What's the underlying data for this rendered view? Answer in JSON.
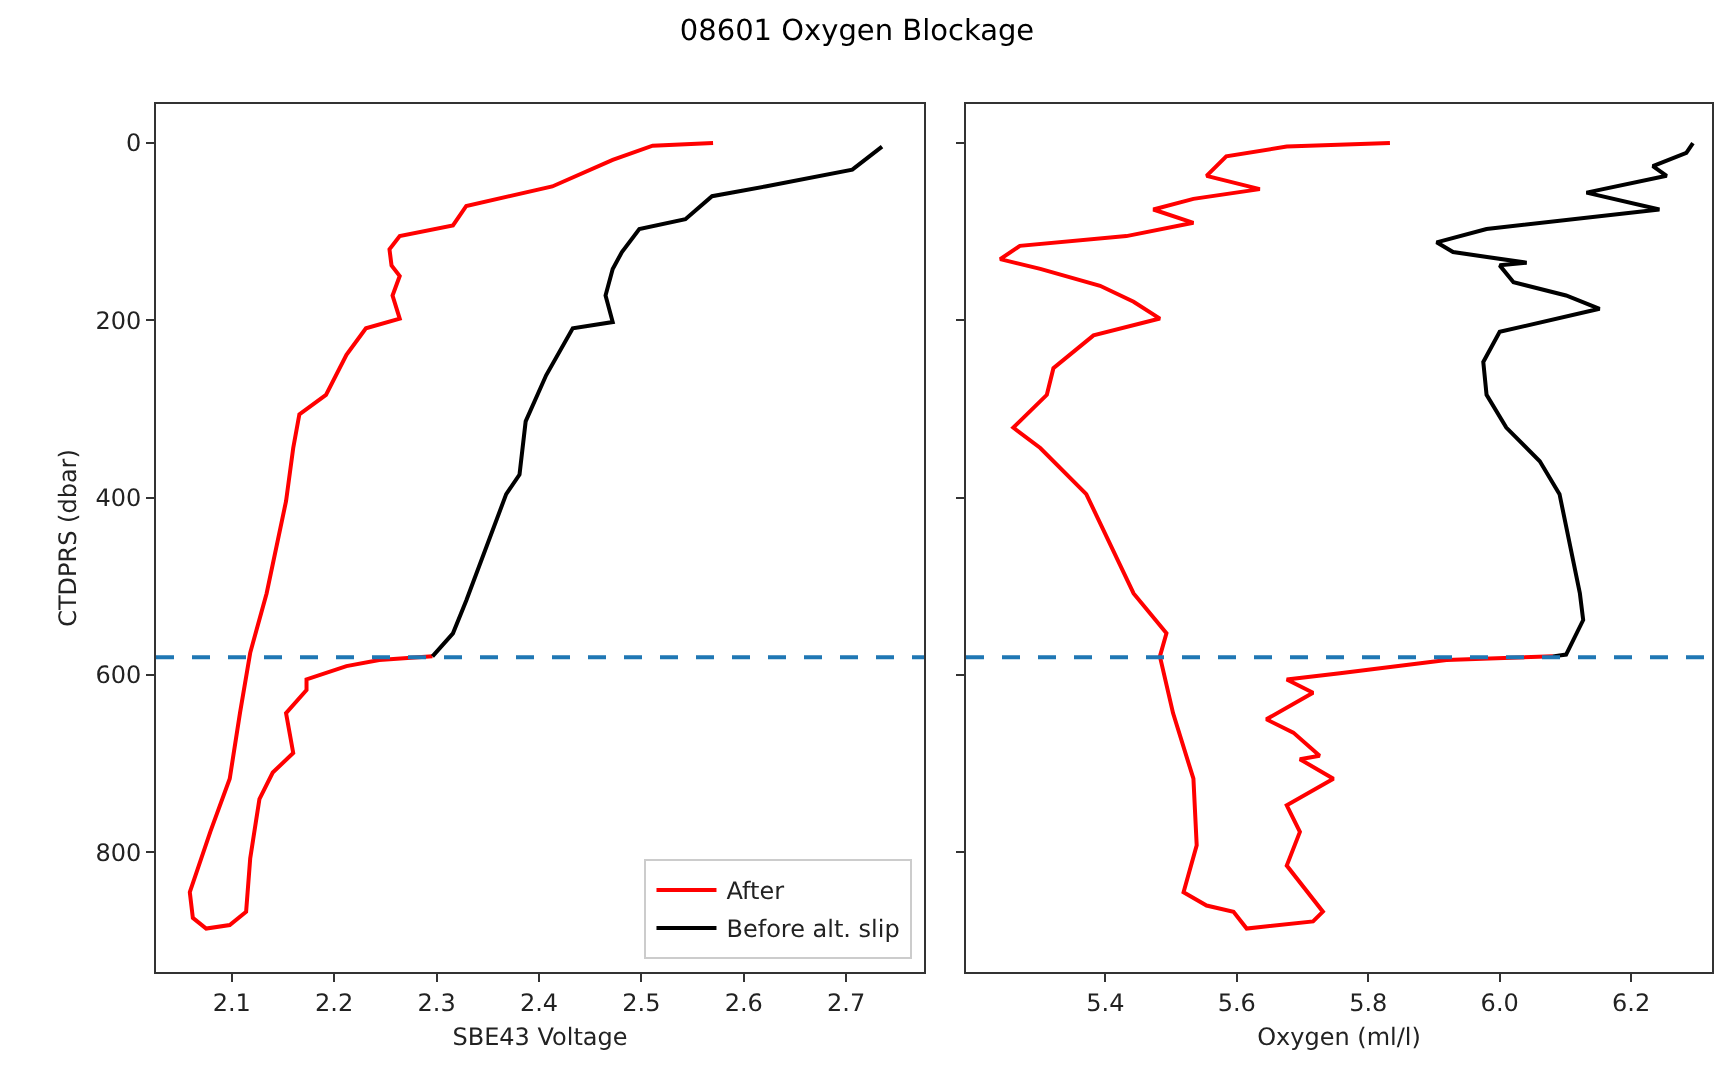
{
  "chart_data": [
    {
      "type": "line",
      "title": "08601 Oxygen Blockage",
      "xlabel": "SBE43 Voltage",
      "ylabel": "CTDPRS (dbar)",
      "xlim": [
        2.026,
        2.776
      ],
      "xticks": [
        2.1,
        2.2,
        2.3,
        2.4,
        2.5,
        2.6,
        2.7
      ],
      "ylim": [
        935,
        -44
      ],
      "yticks": [
        0,
        200,
        400,
        600,
        800
      ],
      "legend": "bottom right",
      "grid": false,
      "ref_lines": [
        {
          "axis": "y",
          "value": 580,
          "color": "#1f77b4",
          "line_style": "dashed"
        }
      ],
      "series": [
        {
          "name": "After",
          "color": "#ff0000",
          "x": [
            2.57,
            2.511,
            2.472,
            2.413,
            2.329,
            2.316,
            2.264,
            2.254,
            2.256,
            2.264,
            2.257,
            2.264,
            2.231,
            2.212,
            2.192,
            2.166,
            2.16,
            2.153,
            2.134,
            2.118,
            2.108,
            2.098,
            2.079,
            2.059,
            2.062,
            2.075,
            2.098,
            2.114,
            2.118,
            2.127,
            2.14,
            2.16,
            2.153,
            2.173,
            2.173,
            2.212,
            2.244,
            2.296
          ],
          "values": [
            0,
            3,
            19,
            49,
            71,
            93,
            105,
            120,
            138,
            150,
            172,
            198,
            209,
            239,
            284,
            306,
            344,
            404,
            508,
            575,
            643,
            717,
            777,
            845,
            874,
            886,
            882,
            867,
            807,
            740,
            710,
            688,
            643,
            617,
            605,
            590,
            583,
            579
          ]
        },
        {
          "name": "Before alt. slip",
          "color": "#000000",
          "x": [
            2.296,
            2.316,
            2.329,
            2.368,
            2.381,
            2.387,
            2.407,
            2.433,
            2.472,
            2.465,
            2.472,
            2.481,
            2.498,
            2.543,
            2.569,
            2.621,
            2.706,
            2.735
          ],
          "values": [
            579,
            553,
            516,
            396,
            374,
            314,
            262,
            209,
            202,
            172,
            142,
            123,
            97,
            86,
            60,
            49,
            30,
            4
          ]
        }
      ]
    },
    {
      "type": "line",
      "xlabel": "Oxygen (ml/l)",
      "xlim": [
        5.188,
        6.323
      ],
      "xticks": [
        5.4,
        5.6,
        5.8,
        {
          "value": 6,
          "label": "6.0"
        },
        6.2
      ],
      "ylim": [
        935,
        -44
      ],
      "yticks": [
        0,
        200,
        400,
        600,
        800
      ],
      "tick_labels": "x",
      "legend": false,
      "grid": false,
      "ref_lines": [
        {
          "axis": "y",
          "value": 580,
          "color": "#1f77b4",
          "line_style": "dashed"
        }
      ],
      "series": [
        {
          "color": "#ff0000",
          "x": [
            5.833,
            5.676,
            5.584,
            5.554,
            5.635,
            5.534,
            5.473,
            5.534,
            5.432,
            5.27,
            5.24,
            5.301,
            5.392,
            5.443,
            5.483,
            5.382,
            5.321,
            5.311,
            5.26,
            5.301,
            5.371,
            5.443,
            5.493,
            5.483,
            5.503,
            5.534,
            5.539,
            5.519,
            5.554,
            5.595,
            5.615,
            5.716,
            5.731,
            5.676,
            5.696,
            5.676,
            5.747,
            5.696,
            5.726,
            5.686,
            5.645,
            5.716,
            5.676,
            5.757,
            5.919,
            6.081
          ],
          "values": [
            0,
            4,
            15,
            37,
            52,
            63,
            75,
            90,
            105,
            116,
            131,
            142,
            161,
            179,
            198,
            217,
            254,
            284,
            321,
            344,
            396,
            508,
            553,
            579,
            643,
            717,
            792,
            845,
            860,
            867,
            886,
            878,
            867,
            815,
            777,
            747,
            717,
            695,
            691,
            665,
            650,
            620,
            605,
            598,
            583,
            579
          ]
        },
        {
          "color": "#000000",
          "x": [
            6.081,
            6.101,
            6.127,
            6.122,
            6.091,
            6.061,
            6.01,
            5.98,
            5.975,
            6.0,
            6.152,
            6.101,
            6.021,
            6.0,
            6.041,
            5.929,
            5.904,
            5.98,
            6.243,
            6.132,
            6.254,
            6.233,
            6.284,
            6.294
          ],
          "values": [
            579,
            577,
            538,
            508,
            396,
            359,
            321,
            284,
            247,
            213,
            187,
            172,
            157,
            138,
            135,
            123,
            112,
            97,
            75,
            56,
            37,
            26,
            11,
            0
          ]
        }
      ]
    }
  ]
}
